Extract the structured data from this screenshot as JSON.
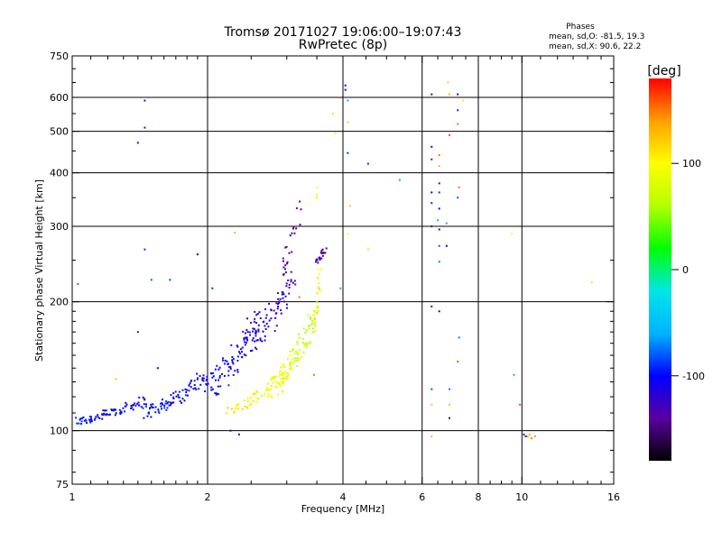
{
  "chart_data": {
    "type": "scatter",
    "title": "Tromsø 20171027 19:06:00–19:07:43",
    "subtitle": "RwPretec (8p)",
    "xlabel": "Frequency [MHz]",
    "ylabel": "Stationary phase Virtual Height [km]",
    "xscale": "log",
    "yscale": "log",
    "xlim": [
      1,
      16
    ],
    "ylim": [
      75,
      750
    ],
    "x_ticks": [
      1,
      2,
      4,
      6,
      8,
      10,
      16
    ],
    "y_ticks": [
      75,
      100,
      200,
      300,
      400,
      500,
      600,
      750
    ],
    "grid": true,
    "phase_stats": {
      "title": "Phases",
      "o_line": "mean, sd,O:  -81.5, 19.3",
      "x_line": "mean, sd,X:   90.6, 22.2"
    },
    "colorbar": {
      "label": "[deg]",
      "range": [
        -180,
        180
      ],
      "ticks": [
        -100,
        0,
        100
      ],
      "colors": [
        "#000000",
        "#5a00a0",
        "#0000ff",
        "#00b4ff",
        "#00e6e6",
        "#00ff00",
        "#b4ff00",
        "#ffff00",
        "#ffa000",
        "#ff0000"
      ]
    },
    "traces": [
      {
        "x0": 1.02,
        "x1": 1.45,
        "y0": 105,
        "y1": 118,
        "n": 80,
        "p0": -95,
        "p1": -110,
        "jx": 0.015,
        "jy": 0.025
      },
      {
        "x0": 1.45,
        "x1": 2.0,
        "y0": 110,
        "y1": 135,
        "n": 90,
        "p0": -95,
        "p1": -105,
        "jx": 0.02,
        "jy": 0.04
      },
      {
        "x0": 2.0,
        "x1": 2.6,
        "y0": 125,
        "y1": 185,
        "n": 90,
        "p0": -100,
        "p1": -115,
        "jx": 0.03,
        "jy": 0.07
      },
      {
        "x0": 2.5,
        "x1": 3.1,
        "y0": 160,
        "y1": 230,
        "n": 80,
        "p0": -110,
        "p1": -130,
        "jx": 0.03,
        "jy": 0.07
      },
      {
        "x0": 2.9,
        "x1": 3.2,
        "y0": 235,
        "y1": 330,
        "n": 22,
        "p0": -130,
        "p1": -140,
        "jx": 0.02,
        "jy": 0.05
      },
      {
        "x0": 3.5,
        "x1": 3.65,
        "y0": 248,
        "y1": 265,
        "n": 22,
        "p0": -125,
        "p1": -135,
        "jx": 0.01,
        "jy": 0.02
      },
      {
        "x0": 2.25,
        "x1": 3.0,
        "y0": 112,
        "y1": 135,
        "n": 60,
        "p0": 110,
        "p1": 90,
        "jx": 0.025,
        "jy": 0.025
      },
      {
        "x0": 2.8,
        "x1": 3.45,
        "y0": 125,
        "y1": 185,
        "n": 100,
        "p0": 100,
        "p1": 60,
        "jx": 0.025,
        "jy": 0.06
      },
      {
        "x0": 3.45,
        "x1": 3.55,
        "y0": 175,
        "y1": 235,
        "n": 25,
        "p0": 100,
        "p1": 110,
        "jx": 0.008,
        "jy": 0.05
      }
    ],
    "points": [
      {
        "x": 1.45,
        "y": 590,
        "p": -130
      },
      {
        "x": 1.45,
        "y": 510,
        "p": -120
      },
      {
        "x": 1.4,
        "y": 470,
        "p": -130
      },
      {
        "x": 1.45,
        "y": 265,
        "p": -90
      },
      {
        "x": 1.5,
        "y": 225,
        "p": -80
      },
      {
        "x": 1.65,
        "y": 225,
        "p": -85
      },
      {
        "x": 1.4,
        "y": 170,
        "p": -140
      },
      {
        "x": 1.9,
        "y": 258,
        "p": -100
      },
      {
        "x": 2.05,
        "y": 215,
        "p": -90
      },
      {
        "x": 1.03,
        "y": 220,
        "p": -70
      },
      {
        "x": 2.3,
        "y": 290,
        "p": 130
      },
      {
        "x": 2.25,
        "y": 100,
        "p": -110
      },
      {
        "x": 2.35,
        "y": 98,
        "p": -120
      },
      {
        "x": 1.25,
        "y": 132,
        "p": 120
      },
      {
        "x": 1.55,
        "y": 140,
        "p": -100
      },
      {
        "x": 3.5,
        "y": 370,
        "p": 100
      },
      {
        "x": 3.5,
        "y": 355,
        "p": 105
      },
      {
        "x": 3.5,
        "y": 350,
        "p": 90
      },
      {
        "x": 3.8,
        "y": 550,
        "p": 110
      },
      {
        "x": 3.85,
        "y": 495,
        "p": 105
      },
      {
        "x": 4.05,
        "y": 640,
        "p": -130
      },
      {
        "x": 4.05,
        "y": 625,
        "p": -120
      },
      {
        "x": 4.1,
        "y": 590,
        "p": -60
      },
      {
        "x": 4.1,
        "y": 525,
        "p": 120
      },
      {
        "x": 4.1,
        "y": 445,
        "p": -90
      },
      {
        "x": 4.15,
        "y": 335,
        "p": 120
      },
      {
        "x": 4.1,
        "y": 288,
        "p": 100
      },
      {
        "x": 3.95,
        "y": 215,
        "p": -60
      },
      {
        "x": 4.55,
        "y": 420,
        "p": -90
      },
      {
        "x": 4.55,
        "y": 265,
        "p": 110
      },
      {
        "x": 5.35,
        "y": 385,
        "p": -60
      },
      {
        "x": 3.2,
        "y": 205,
        "p": 150
      },
      {
        "x": 3.45,
        "y": 135,
        "p": 150
      },
      {
        "x": 6.3,
        "y": 610,
        "p": -110
      },
      {
        "x": 6.3,
        "y": 460,
        "p": -120
      },
      {
        "x": 6.3,
        "y": 430,
        "p": -90
      },
      {
        "x": 6.3,
        "y": 360,
        "p": -100
      },
      {
        "x": 6.3,
        "y": 340,
        "p": -90
      },
      {
        "x": 6.3,
        "y": 300,
        "p": -120
      },
      {
        "x": 6.3,
        "y": 195,
        "p": -130
      },
      {
        "x": 6.3,
        "y": 125,
        "p": -80
      },
      {
        "x": 6.3,
        "y": 115,
        "p": 120
      },
      {
        "x": 6.3,
        "y": 97,
        "p": 130
      },
      {
        "x": 6.55,
        "y": 440,
        "p": 150
      },
      {
        "x": 6.55,
        "y": 415,
        "p": 130
      },
      {
        "x": 6.55,
        "y": 378,
        "p": -130
      },
      {
        "x": 6.55,
        "y": 360,
        "p": -90
      },
      {
        "x": 6.55,
        "y": 330,
        "p": -100
      },
      {
        "x": 6.5,
        "y": 310,
        "p": -60
      },
      {
        "x": 6.55,
        "y": 295,
        "p": -110
      },
      {
        "x": 6.55,
        "y": 270,
        "p": -80
      },
      {
        "x": 6.55,
        "y": 248,
        "p": -70
      },
      {
        "x": 6.55,
        "y": 190,
        "p": -120
      },
      {
        "x": 6.85,
        "y": 650,
        "p": 120
      },
      {
        "x": 6.9,
        "y": 610,
        "p": 130
      },
      {
        "x": 6.9,
        "y": 490,
        "p": 160
      },
      {
        "x": 6.8,
        "y": 305,
        "p": -60
      },
      {
        "x": 6.8,
        "y": 270,
        "p": -100
      },
      {
        "x": 6.9,
        "y": 125,
        "p": -70
      },
      {
        "x": 6.9,
        "y": 115,
        "p": 130
      },
      {
        "x": 6.9,
        "y": 107,
        "p": -110
      },
      {
        "x": 7.2,
        "y": 610,
        "p": -110
      },
      {
        "x": 7.2,
        "y": 560,
        "p": -90
      },
      {
        "x": 7.2,
        "y": 520,
        "p": 150
      },
      {
        "x": 7.25,
        "y": 370,
        "p": 150
      },
      {
        "x": 7.2,
        "y": 350,
        "p": -80
      },
      {
        "x": 7.25,
        "y": 165,
        "p": -70
      },
      {
        "x": 7.2,
        "y": 145,
        "p": 160
      },
      {
        "x": 7.4,
        "y": 590,
        "p": 110
      },
      {
        "x": 9.5,
        "y": 288,
        "p": 100
      },
      {
        "x": 9.6,
        "y": 135,
        "p": -60
      },
      {
        "x": 9.9,
        "y": 115,
        "p": 160
      },
      {
        "x": 10.1,
        "y": 98,
        "p": -130
      },
      {
        "x": 10.3,
        "y": 97,
        "p": 140
      },
      {
        "x": 10.5,
        "y": 96,
        "p": 150
      },
      {
        "x": 10.4,
        "y": 98,
        "p": 130
      },
      {
        "x": 10.7,
        "y": 97,
        "p": 140
      },
      {
        "x": 10.2,
        "y": 97,
        "p": -120
      },
      {
        "x": 14.3,
        "y": 222,
        "p": 110
      }
    ]
  }
}
